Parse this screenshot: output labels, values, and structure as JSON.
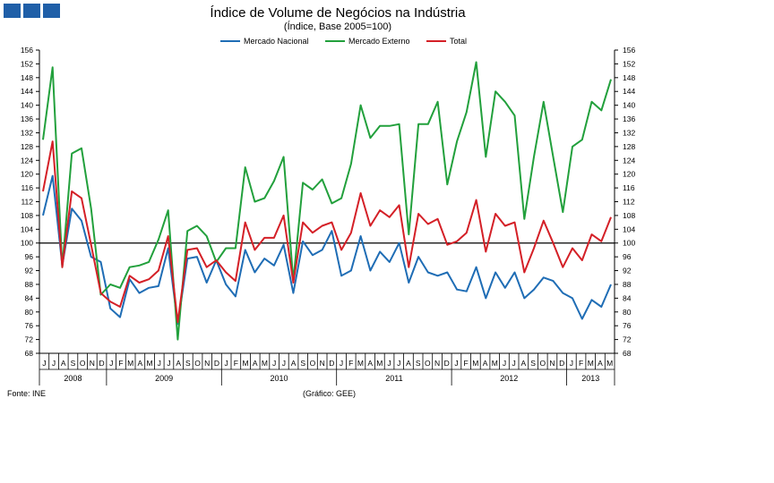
{
  "chart_data": {
    "type": "line",
    "title": "Índice de Volume de Negócios na Indústria",
    "subtitle": "(Índice, Base 2005=100)",
    "ylim": [
      68,
      156
    ],
    "y_ticks": [
      68,
      72,
      76,
      80,
      84,
      88,
      92,
      96,
      100,
      104,
      108,
      112,
      116,
      120,
      124,
      128,
      132,
      136,
      140,
      144,
      148,
      152,
      156
    ],
    "reference_line": 100,
    "month_labels": [
      "J",
      "J",
      "A",
      "S",
      "O",
      "N",
      "D",
      "J",
      "F",
      "M",
      "A",
      "M",
      "J",
      "J",
      "A",
      "S",
      "O",
      "N",
      "D",
      "J",
      "F",
      "M",
      "A",
      "M",
      "J",
      "J",
      "A",
      "S",
      "O",
      "N",
      "D",
      "J",
      "F",
      "M",
      "A",
      "M",
      "J",
      "J",
      "A",
      "S",
      "O",
      "N",
      "D",
      "J",
      "F",
      "M",
      "A",
      "M",
      "J",
      "J",
      "A",
      "S",
      "O",
      "N",
      "D",
      "J",
      "F",
      "M",
      "A",
      "M"
    ],
    "years": [
      {
        "label": "2008",
        "start": 0,
        "end": 7
      },
      {
        "label": "2009",
        "start": 7,
        "end": 19
      },
      {
        "label": "2010",
        "start": 19,
        "end": 31
      },
      {
        "label": "2011",
        "start": 31,
        "end": 43
      },
      {
        "label": "2012",
        "start": 43,
        "end": 55
      },
      {
        "label": "2013",
        "start": 55,
        "end": 60
      }
    ],
    "series": [
      {
        "name": "Mercado Nacional",
        "color": "#1f6db5",
        "values": [
          108,
          119.5,
          93.5,
          110,
          106.5,
          96,
          94.5,
          81,
          78.5,
          89.5,
          85.5,
          87,
          87.5,
          98.5,
          76.5,
          95.5,
          96,
          88.5,
          95,
          88,
          84.5,
          98,
          91.5,
          95.5,
          93.5,
          99.5,
          85.5,
          100.5,
          96.5,
          98,
          103.5,
          90.5,
          92,
          102,
          92,
          97.5,
          94.5,
          100,
          88.5,
          96,
          91.5,
          90.5,
          91.5,
          86.5,
          86,
          93,
          84,
          91.5,
          87,
          91.5,
          84,
          86.5,
          90,
          89,
          85.5,
          84,
          78,
          83.5,
          81.5,
          88
        ]
      },
      {
        "name": "Mercado Externo",
        "color": "#22a03c",
        "values": [
          130,
          151,
          93,
          126,
          127.5,
          110,
          85,
          88,
          87,
          93,
          93.5,
          94.5,
          101,
          109.5,
          72,
          103.5,
          105,
          102,
          94.5,
          98.5,
          98.5,
          122,
          112,
          113,
          118,
          125,
          89,
          117.5,
          115.5,
          118.5,
          111.5,
          113,
          123,
          140,
          130.5,
          134,
          134,
          134.5,
          102.5,
          134.5,
          134.5,
          141,
          117,
          129.5,
          138,
          152.5,
          125,
          144,
          141,
          137,
          107,
          125,
          141,
          125,
          109,
          128,
          130,
          141,
          138.5,
          147.5
        ]
      },
      {
        "name": "Total",
        "color": "#d42027",
        "values": [
          115,
          129.5,
          93,
          115,
          113,
          99.5,
          85.5,
          83,
          81.5,
          90.5,
          88.5,
          89.5,
          92,
          102,
          77,
          98,
          98.5,
          93,
          95,
          91.5,
          89,
          106,
          98,
          101.5,
          101.5,
          108,
          88.5,
          106,
          103,
          105,
          106,
          98,
          103,
          114.5,
          105,
          109.5,
          107.5,
          111,
          93,
          108.5,
          105.5,
          107,
          99.5,
          100.5,
          103,
          112.5,
          97.5,
          108.5,
          105,
          106,
          91.5,
          98.5,
          106.5,
          100,
          93,
          98.5,
          95,
          102.5,
          100.5,
          107.5
        ]
      }
    ]
  },
  "source_left": "Fonte: INE",
  "source_right": "(Gráfico: GEE)"
}
